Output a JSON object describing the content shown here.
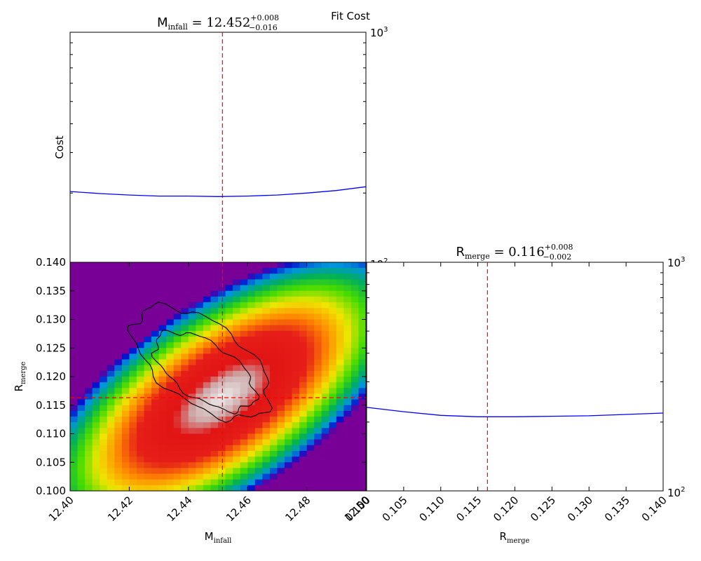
{
  "figure": {
    "suptitle": "Fit Cost"
  },
  "chart_data": [
    {
      "type": "line",
      "panel": "marginal-m-infall",
      "param_symbol": "M",
      "param_subscript": "infall",
      "best_value": "12.452",
      "err_plus": "+0.008",
      "err_minus": "−0.016",
      "ylabel": "Cost",
      "yscale": "log",
      "ylim": [
        100,
        1000
      ],
      "xlim": [
        12.4,
        12.5
      ],
      "y_tick_labels": [
        {
          "base": "10",
          "exp": "3",
          "value": 1000
        },
        {
          "base": "10",
          "exp": "2",
          "value": 100
        }
      ],
      "best_fit_marker": 12.4515,
      "series": [
        {
          "color": "#0000ff",
          "x": [
            12.4,
            12.41,
            12.42,
            12.43,
            12.44,
            12.45,
            12.46,
            12.47,
            12.48,
            12.49,
            12.5
          ],
          "y": [
            203,
            199,
            196,
            194,
            194,
            193,
            194,
            196,
            200,
            205,
            213
          ]
        }
      ]
    },
    {
      "type": "heatmap",
      "panel": "joint-m-infall-r-merge",
      "xlabel_symbol": "M",
      "xlabel_subscript": "infall",
      "ylabel_symbol": "R",
      "ylabel_subscript": "merge",
      "xlim": [
        12.4,
        12.5
      ],
      "ylim": [
        0.1,
        0.14
      ],
      "x_ticks": [
        "12.40",
        "12.42",
        "12.44",
        "12.46",
        "12.48",
        "12.50"
      ],
      "y_ticks": [
        "0.100",
        "0.105",
        "0.110",
        "0.115",
        "0.120",
        "0.125",
        "0.130",
        "0.135",
        "0.140"
      ],
      "colormap": "spectral (low cost = white/grey, high cost = violet/blue)",
      "best_fit": {
        "x": 12.4515,
        "y": 0.1163
      },
      "contour_levels": 2
    },
    {
      "type": "line",
      "panel": "marginal-r-merge",
      "param_symbol": "R",
      "param_subscript": "merge",
      "best_value": "0.116",
      "err_plus": "+0.008",
      "err_minus": "−0.002",
      "xlabel_symbol": "R",
      "xlabel_subscript": "merge",
      "yscale": "log",
      "ylim": [
        100,
        1000
      ],
      "xlim": [
        0.1,
        0.14
      ],
      "x_ticks": [
        "0.100",
        "0.105",
        "0.110",
        "0.115",
        "0.120",
        "0.125",
        "0.130",
        "0.135",
        "0.140"
      ],
      "y_tick_labels": [
        {
          "base": "10",
          "exp": "3",
          "value": 1000
        },
        {
          "base": "10",
          "exp": "2",
          "value": 100
        }
      ],
      "best_fit_marker": 0.1163,
      "series": [
        {
          "color": "#0000ff",
          "x": [
            0.1,
            0.105,
            0.11,
            0.115,
            0.12,
            0.125,
            0.13,
            0.135,
            0.14
          ],
          "y": [
            232,
            222,
            214,
            211,
            211,
            212,
            213,
            216,
            219
          ]
        }
      ]
    }
  ]
}
